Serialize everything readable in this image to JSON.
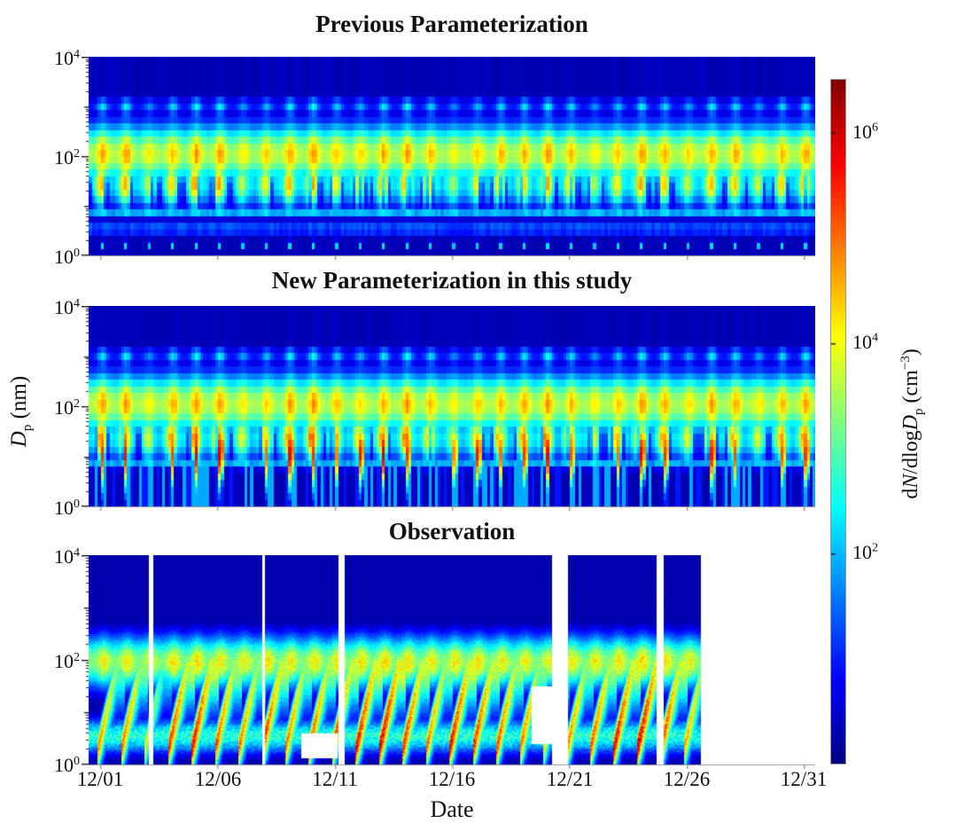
{
  "chart_data": {
    "type": "heatmap",
    "colormap": "jet",
    "value_scale": "log10",
    "value_range_log10": [
      0,
      6.5
    ],
    "x_axis": {
      "label": "Date",
      "range_days": [
        0,
        31
      ],
      "tick_days": [
        0.5,
        5.5,
        10.5,
        15.5,
        20.5,
        25.5,
        30.5
      ],
      "tick_labels": [
        "12/01",
        "12/06",
        "12/11",
        "12/16",
        "12/21",
        "12/26",
        "12/31"
      ]
    },
    "y_axis": {
      "label_symbol": "D",
      "label_sub": "p",
      "label_units": " (nm)",
      "log_range": [
        0,
        4
      ],
      "ticks": [
        {
          "base": "10",
          "exp": "4"
        },
        {
          "base": "10",
          "exp": "2"
        },
        {
          "base": "10",
          "exp": "0"
        }
      ]
    },
    "colorbar": {
      "range_log10": [
        0,
        6.5
      ],
      "tick_values_log10": [
        6,
        4,
        2
      ],
      "ticks": [
        {
          "base": "10",
          "exp": "6"
        },
        {
          "base": "10",
          "exp": "4"
        },
        {
          "base": "10",
          "exp": "2"
        }
      ],
      "label_parts": {
        "p1": "d",
        "p2": "N",
        "p3": "/dlog",
        "p4": "D",
        "p5": "p",
        "p6": " (cm",
        "p7": "−3",
        "p8": ")"
      }
    },
    "panels": [
      {
        "title": "Previous Parameterization",
        "style": "model_prev",
        "day_strength": [
          0.95,
          1.0,
          0.55,
          0.9,
          1.05,
          1.0,
          0.6,
          0.75,
          0.95,
          1.05,
          0.8,
          0.7,
          0.95,
          1.05,
          0.85,
          0.5,
          0.75,
          0.85,
          0.95,
          1.05,
          0.9,
          0.55,
          0.8,
          1.0,
          0.9,
          0.65,
          0.95,
          0.9,
          0.6,
          0.9,
          0.95
        ]
      },
      {
        "title": "New Parameterization in this study",
        "style": "model_new",
        "day_strength": [
          0.95,
          1.0,
          0.55,
          0.9,
          1.05,
          1.0,
          0.6,
          0.75,
          0.95,
          1.05,
          0.8,
          0.7,
          0.95,
          1.05,
          0.85,
          0.5,
          0.75,
          0.85,
          0.95,
          1.05,
          0.9,
          0.55,
          0.8,
          1.0,
          0.9,
          0.65,
          0.95,
          0.9,
          0.6,
          0.9,
          0.95
        ],
        "npf_strength": [
          0.8,
          0.9,
          0.3,
          0.7,
          1.0,
          1.1,
          0.4,
          0.6,
          1.0,
          0.8,
          0.5,
          0.9,
          1.1,
          0.8,
          0.3,
          0.5,
          0.9,
          0.6,
          0.8,
          1.0,
          0.7,
          0.3,
          0.6,
          1.0,
          0.8,
          0.4,
          0.9,
          0.7,
          0.4,
          0.7,
          0.8
        ]
      },
      {
        "title": "Observation",
        "style": "observation",
        "day_strength": [
          0.85,
          0.9,
          0.7,
          1.0,
          1.05,
          0.95,
          0.9,
          1.0,
          0.9,
          0.95,
          1.0,
          1.05,
          1.1,
          1.0,
          0.9,
          1.05,
          1.0,
          0.95,
          0.9,
          0.75,
          0.9,
          0.95,
          1.05,
          1.1,
          1.0,
          0.85,
          0,
          0,
          0,
          0,
          0
        ],
        "data_end_day": 26.09,
        "gaps_full_days": [
          {
            "start_day": 2.55,
            "end_day": 2.75
          },
          {
            "start_day": 7.4,
            "end_day": 7.5
          },
          {
            "start_day": 10.65,
            "end_day": 10.9
          },
          {
            "start_day": 19.77,
            "end_day": 20.43
          },
          {
            "start_day": 24.22,
            "end_day": 24.5
          }
        ],
        "gaps_partial": [
          {
            "start_day": 9.05,
            "end_day": 10.6,
            "top_log_dp": 0.6,
            "bottom_log_dp": 0.12
          },
          {
            "start_day": 18.9,
            "end_day": 19.77,
            "top_log_dp": 1.5,
            "bottom_log_dp": 0.4
          }
        ]
      }
    ]
  }
}
